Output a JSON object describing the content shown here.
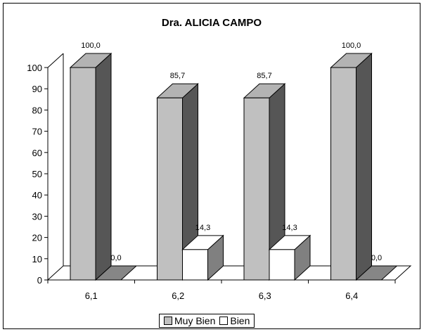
{
  "chart_data": {
    "type": "bar",
    "title": "Dra. ALICIA CAMPO",
    "categories": [
      "6,1",
      "6,2",
      "6,3",
      "6,4"
    ],
    "series": [
      {
        "name": "Muy Bien",
        "values": [
          100.0,
          85.7,
          85.7,
          100.0
        ],
        "labels": [
          "100,0",
          "85,7",
          "85,7",
          "100,0"
        ],
        "color": "#c0c0c0"
      },
      {
        "name": "Bien",
        "values": [
          0.0,
          14.3,
          14.3,
          0.0
        ],
        "labels": [
          "0,0",
          "14,3",
          "14,3",
          "0,0"
        ],
        "color": "#ffffff"
      }
    ],
    "ylim": [
      0,
      100
    ],
    "yticks": [
      "0",
      "10",
      "20",
      "30",
      "40",
      "50",
      "60",
      "70",
      "80",
      "90",
      "100"
    ],
    "xlabel": "",
    "ylabel": "",
    "grid": false,
    "legend": "bottom",
    "style": "3d-column"
  }
}
